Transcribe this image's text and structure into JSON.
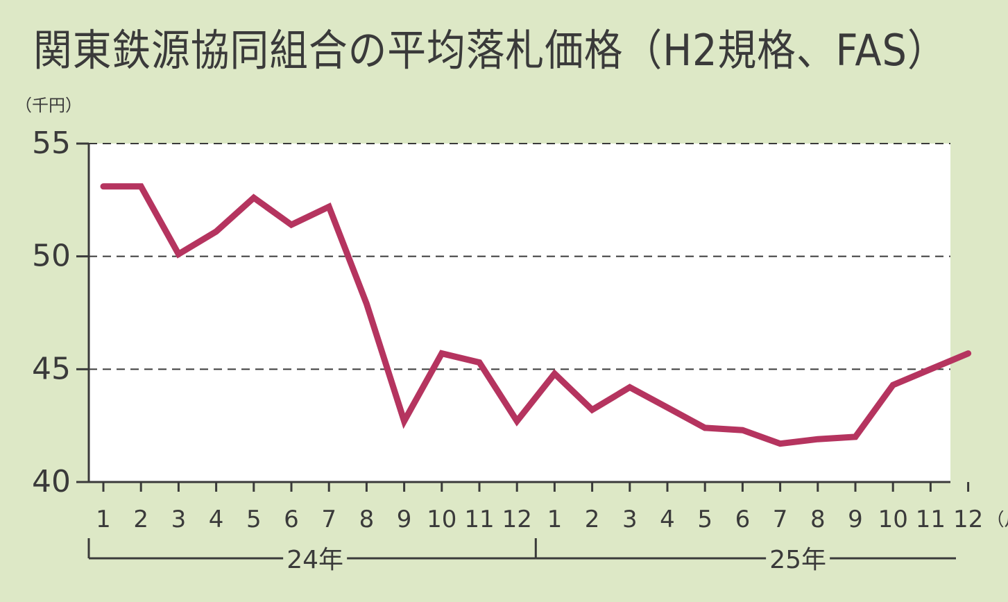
{
  "chart_data": {
    "type": "line",
    "title": "関東鉄源協同組合の平均落札価格（H2規格、FAS）",
    "ylabel": "（千円）",
    "xunit": "（月）",
    "ylim": [
      40,
      55
    ],
    "yticks": [
      "55",
      "50",
      "45",
      "40"
    ],
    "grid": true,
    "categories": [
      "1",
      "2",
      "3",
      "4",
      "5",
      "6",
      "7",
      "8",
      "9",
      "10",
      "11",
      "12",
      "1",
      "2",
      "3",
      "4",
      "5",
      "6",
      "7",
      "8",
      "9",
      "10",
      "11",
      "12"
    ],
    "years": [
      {
        "label": "24年",
        "from": 0,
        "to": 11
      },
      {
        "label": "25年",
        "from": 12,
        "to": 23
      }
    ],
    "series": [
      {
        "color": "#b5345f",
        "values": [
          53.1,
          53.1,
          50.1,
          51.1,
          52.6,
          51.4,
          52.2,
          47.9,
          42.7,
          45.7,
          45.3,
          42.7,
          44.8,
          43.2,
          44.2,
          43.3,
          42.4,
          42.3,
          41.7,
          41.9,
          42.0,
          44.3,
          45.0,
          45.7
        ]
      }
    ],
    "colors": {
      "background": "#dde8c6",
      "plot_area": "#ffffff",
      "axis": "#3a3a3a"
    }
  }
}
